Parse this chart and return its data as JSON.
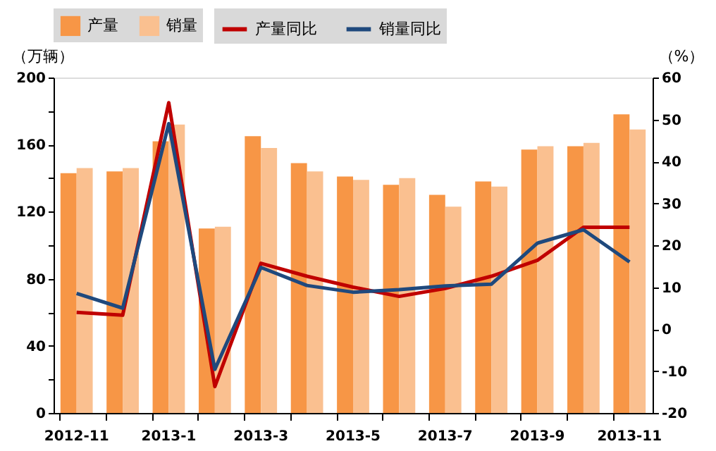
{
  "chart_data": {
    "type": "bar",
    "categories": [
      "2012-11",
      null,
      "2013-1",
      null,
      "2013-3",
      null,
      "2013-5",
      null,
      "2013-7",
      null,
      "2013-9",
      null,
      "2013-11"
    ],
    "series": [
      {
        "name": "产量",
        "type": "bar",
        "color": "#f79646",
        "values": [
          143,
          144,
          162,
          110,
          165,
          149,
          141,
          136,
          130,
          138,
          157,
          159,
          178
        ]
      },
      {
        "name": "销量",
        "type": "bar",
        "color": "#fac090",
        "values": [
          146,
          146,
          172,
          111,
          158,
          144,
          139,
          140,
          123,
          135,
          159,
          161,
          169
        ]
      },
      {
        "name": "产量同比",
        "type": "line",
        "axis": "y2",
        "color": "#c00000",
        "values": [
          4,
          3.3,
          54,
          -13.7,
          15.7,
          12.6,
          10,
          7.8,
          9.7,
          12.6,
          16.4,
          24.3,
          24.3
        ]
      },
      {
        "name": "销量同比",
        "type": "line",
        "axis": "y2",
        "color": "#1f497d",
        "values": [
          8.5,
          5,
          49,
          -9.6,
          14.7,
          10.4,
          8.8,
          9.4,
          10.3,
          10.7,
          20.5,
          23.7,
          16
        ]
      }
    ],
    "ylabel": "（万辆）",
    "y2label": "（%）",
    "ylim": [
      0,
      200
    ],
    "yticks": [
      0,
      {
        "value": 20,
        "label": null
      },
      40,
      {
        "value": 60,
        "label": null
      },
      80,
      {
        "value": 100,
        "label": null
      },
      120,
      {
        "value": 140,
        "label": null
      },
      160,
      {
        "value": 180,
        "label": null
      },
      200
    ],
    "y2lim": [
      -20,
      60
    ],
    "y2ticks": [
      -20,
      -10,
      0,
      10,
      20,
      30,
      40,
      50,
      60
    ],
    "legend": "top",
    "grid": false
  }
}
